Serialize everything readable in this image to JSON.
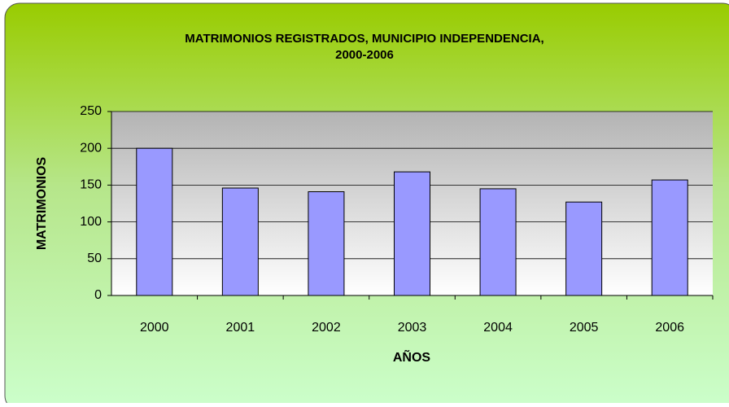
{
  "chart_data": {
    "type": "bar",
    "title": [
      "MATRIMONIOS REGISTRADOS, MUNICIPIO INDEPENDENCIA,",
      "2000-2006"
    ],
    "x_label": "AÑOS",
    "y_label": "MATRIMONIOS",
    "categories": [
      "2000",
      "2001",
      "2002",
      "2003",
      "2004",
      "2005",
      "2006"
    ],
    "values": [
      200,
      146,
      141,
      168,
      145,
      127,
      157
    ],
    "color": "#9999ff",
    "ylim": [
      0,
      250
    ],
    "yticks": [
      0,
      50,
      100,
      150,
      200,
      250
    ],
    "grid": true
  }
}
